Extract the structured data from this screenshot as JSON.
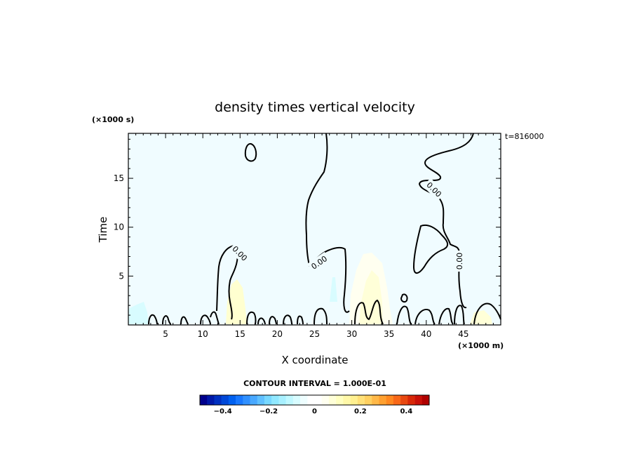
{
  "chart_data": {
    "type": "heatmap",
    "title": "density times vertical velocity",
    "xlabel": "X coordinate",
    "ylabel": "Time",
    "x_unit": "(×1000 m)",
    "y_unit": "(×1000 s)",
    "time_label": "t=816000",
    "xlim": [
      0,
      50
    ],
    "ylim": [
      0,
      19.6
    ],
    "x_ticks": [
      5,
      10,
      15,
      20,
      25,
      30,
      35,
      40,
      45
    ],
    "y_ticks": [
      5,
      10,
      15
    ],
    "contour_interval_text": "CONTOUR INTERVAL = 1.000E-01",
    "contour_labels": [
      "0.00",
      "0.00",
      "0.00",
      "0.00"
    ],
    "colorbar": {
      "range": [
        -0.5,
        0.5
      ],
      "ticks": [
        -0.4,
        -0.2,
        0,
        0.2,
        0.4
      ],
      "tick_labels": [
        "−0.4",
        "−0.2",
        "0",
        "0.2",
        "0.4"
      ],
      "colors": [
        "#00008c",
        "#0018a8",
        "#0030c0",
        "#0048d8",
        "#0060f0",
        "#1878ff",
        "#3090ff",
        "#48a8ff",
        "#60c0ff",
        "#78d8ff",
        "#90e8ff",
        "#a8f0ff",
        "#c0f8ff",
        "#d8fcff",
        "#eefeff",
        "#ffffff",
        "#ffffff",
        "#fffff0",
        "#ffffd8",
        "#ffffc0",
        "#fff8a8",
        "#fff090",
        "#ffe078",
        "#ffd060",
        "#ffb848",
        "#ffa030",
        "#ff8820",
        "#f86818",
        "#e84810",
        "#d82808",
        "#c81008",
        "#b00000"
      ]
    },
    "background_color": "#f0fcff",
    "zero_contour_color": "#000000"
  }
}
